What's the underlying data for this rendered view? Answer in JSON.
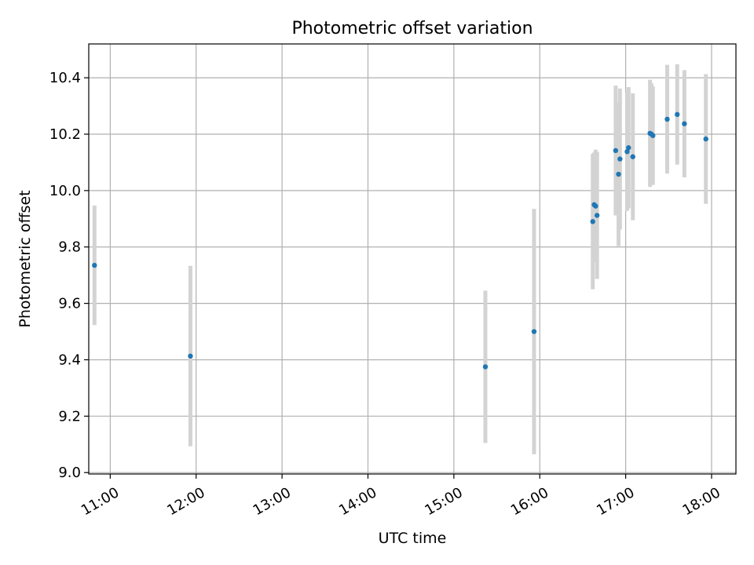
{
  "chart_data": {
    "type": "scatter",
    "title": "Photometric offset variation",
    "xlabel": "UTC time",
    "ylabel": "Photometric offset",
    "x_axis_kind": "time",
    "xlim": [
      "10:45",
      "18:17"
    ],
    "ylim": [
      8.995,
      10.52
    ],
    "x_ticks": [
      "11:00",
      "12:00",
      "13:00",
      "14:00",
      "15:00",
      "16:00",
      "17:00",
      "18:00"
    ],
    "y_ticks": [
      9.0,
      9.2,
      9.4,
      9.6,
      9.8,
      10.0,
      10.2,
      10.4
    ],
    "y_tick_labels": [
      "9.0",
      "9.2",
      "9.4",
      "9.6",
      "9.8",
      "10.0",
      "10.2",
      "10.4"
    ],
    "grid": true,
    "colors": {
      "point": "#1f77b4",
      "errorbar": "#d3d3d3",
      "grid": "#b0b0b0"
    },
    "points": [
      {
        "x": "10:49",
        "y": 9.735,
        "err": 0.212
      },
      {
        "x": "11:56",
        "y": 9.413,
        "err": 0.32
      },
      {
        "x": "15:22",
        "y": 9.375,
        "err": 0.27
      },
      {
        "x": "15:56",
        "y": 9.5,
        "err": 0.435
      },
      {
        "x": "16:37",
        "y": 9.89,
        "err": 0.24
      },
      {
        "x": "16:38",
        "y": 9.95,
        "err": 0.185
      },
      {
        "x": "16:39",
        "y": 9.945,
        "err": 0.2
      },
      {
        "x": "16:40",
        "y": 9.912,
        "err": 0.225
      },
      {
        "x": "16:53",
        "y": 10.142,
        "err": 0.23
      },
      {
        "x": "16:55",
        "y": 10.058,
        "err": 0.255
      },
      {
        "x": "16:56",
        "y": 10.112,
        "err": 0.25
      },
      {
        "x": "17:01",
        "y": 10.138,
        "err": 0.21
      },
      {
        "x": "17:02",
        "y": 10.152,
        "err": 0.215
      },
      {
        "x": "17:05",
        "y": 10.12,
        "err": 0.225
      },
      {
        "x": "17:17",
        "y": 10.203,
        "err": 0.19
      },
      {
        "x": "17:18",
        "y": 10.2,
        "err": 0.18
      },
      {
        "x": "17:19",
        "y": 10.195,
        "err": 0.175
      },
      {
        "x": "17:29",
        "y": 10.253,
        "err": 0.193
      },
      {
        "x": "17:36",
        "y": 10.27,
        "err": 0.178
      },
      {
        "x": "17:41",
        "y": 10.237,
        "err": 0.19
      },
      {
        "x": "17:56",
        "y": 10.183,
        "err": 0.23
      }
    ]
  }
}
